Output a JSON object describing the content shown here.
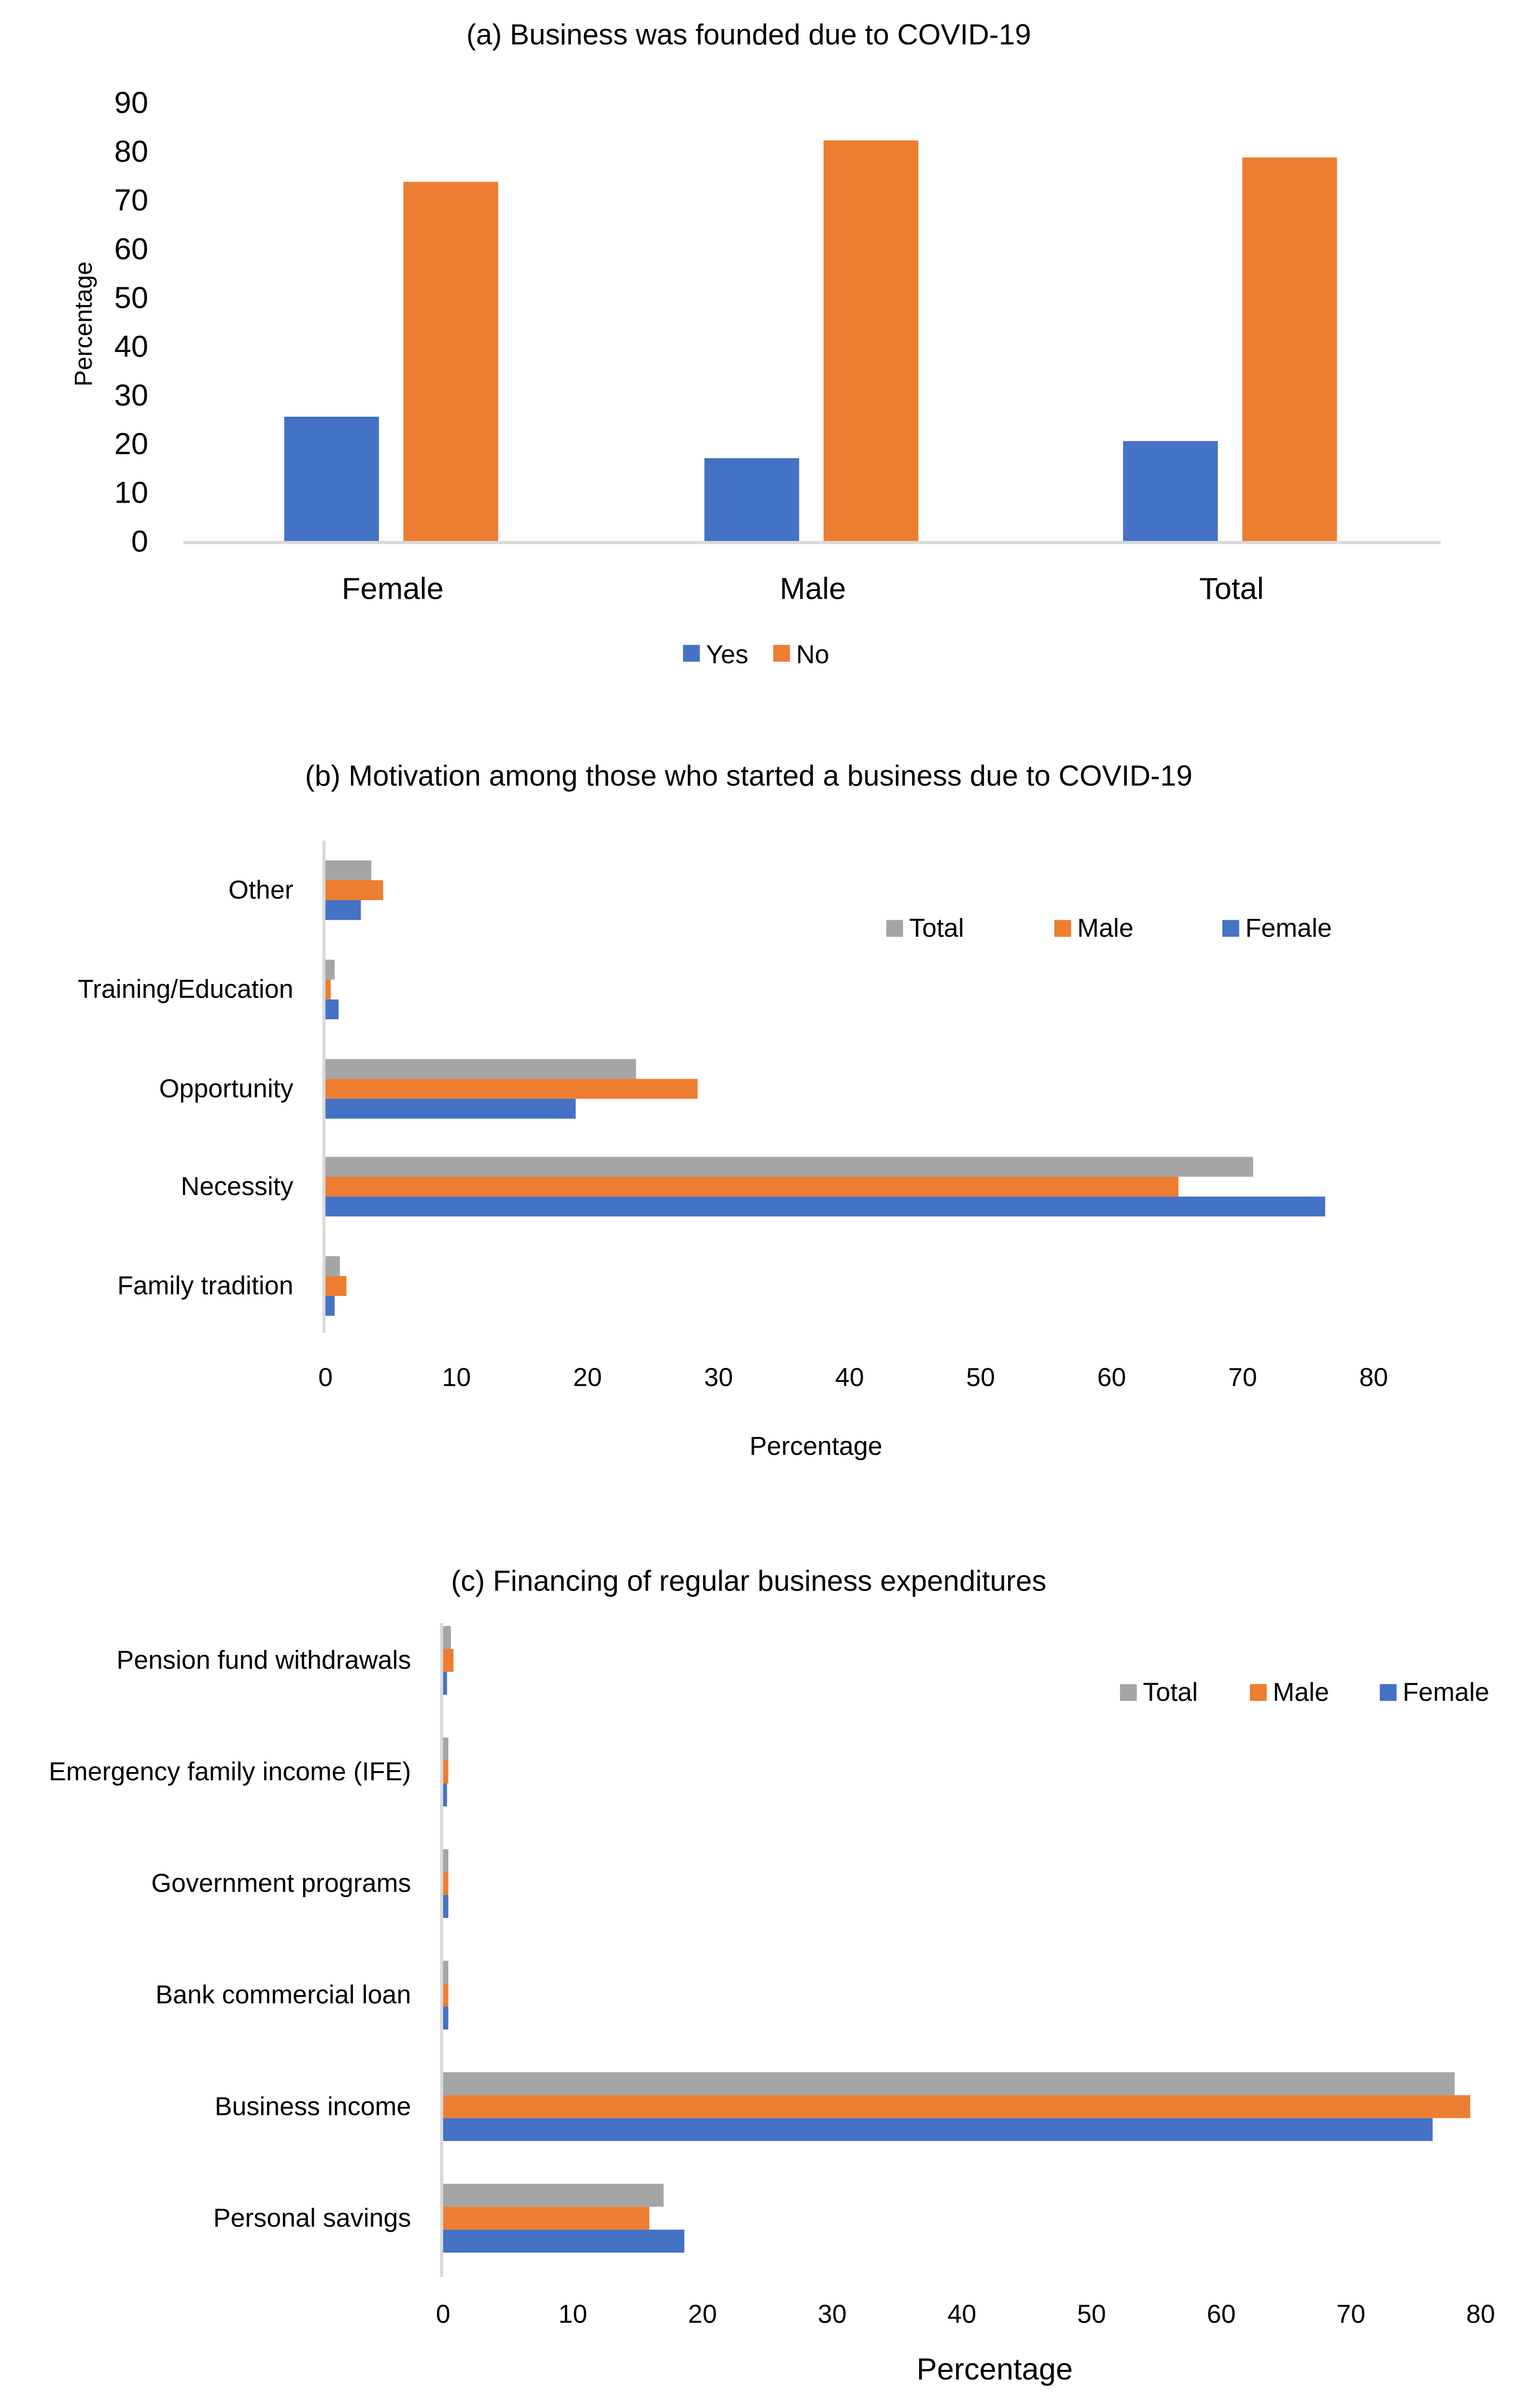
{
  "colors": {
    "blue": "#4472C4",
    "orange": "#ED7D31",
    "gray": "#A5A5A5",
    "axis": "#D9D9D9"
  },
  "chart_data": [
    {
      "type": "bar",
      "title": "(a) Business was founded due to COVID-19",
      "xlabel": "",
      "ylabel": "Percentage",
      "ylim": [
        0,
        90
      ],
      "yticks": [
        "0",
        "10",
        "20",
        "30",
        "40",
        "50",
        "60",
        "70",
        "80",
        "90"
      ],
      "categories": [
        "Female",
        "Male",
        "Total"
      ],
      "legend_position": "bottom",
      "series": [
        {
          "name": "Yes",
          "color": "#4472C4",
          "values": [
            25.5,
            17.0,
            20.5
          ]
        },
        {
          "name": "No",
          "color": "#ED7D31",
          "values": [
            73.7,
            82.2,
            78.7
          ]
        }
      ]
    },
    {
      "type": "bar",
      "orientation": "horizontal",
      "title": "(b) Motivation among those who started a business due to COVID-19",
      "xlabel": "Percentage",
      "ylabel": "",
      "xlim": [
        0,
        80
      ],
      "xticks": [
        "0",
        "10",
        "20",
        "30",
        "40",
        "50",
        "60",
        "70",
        "80"
      ],
      "categories": [
        "Other",
        "Training/Education",
        "Opportunity",
        "Necessity",
        "Family tradition"
      ],
      "legend_position": "top-right",
      "series": [
        {
          "name": "Total",
          "color": "#A5A5A5",
          "values": [
            3.5,
            0.7,
            23.7,
            70.8,
            1.1
          ]
        },
        {
          "name": "Male",
          "color": "#ED7D31",
          "values": [
            4.4,
            0.4,
            28.4,
            65.1,
            1.6
          ]
        },
        {
          "name": "Female",
          "color": "#4472C4",
          "values": [
            2.7,
            1.0,
            19.1,
            76.3,
            0.7
          ]
        }
      ]
    },
    {
      "type": "bar",
      "orientation": "horizontal",
      "title": "(c) Financing of regular business expenditures",
      "xlabel": "Percentage",
      "ylabel": "",
      "xlim": [
        0,
        80
      ],
      "xticks": [
        "0",
        "10",
        "20",
        "30",
        "40",
        "50",
        "60",
        "70",
        "80"
      ],
      "categories": [
        "Pension fund withdrawals",
        "Emergency family income (IFE)",
        "Government programs",
        "Bank commercial loan",
        "Business income",
        "Personal savings"
      ],
      "legend_position": "top-right",
      "series": [
        {
          "name": "Total",
          "color": "#A5A5A5",
          "values": [
            0.6,
            0.4,
            0.4,
            0.4,
            78.0,
            17.0
          ]
        },
        {
          "name": "Male",
          "color": "#ED7D31",
          "values": [
            0.8,
            0.4,
            0.4,
            0.4,
            79.2,
            15.9
          ]
        },
        {
          "name": "Female",
          "color": "#4472C4",
          "values": [
            0.3,
            0.3,
            0.4,
            0.4,
            76.3,
            18.6
          ]
        }
      ]
    }
  ]
}
